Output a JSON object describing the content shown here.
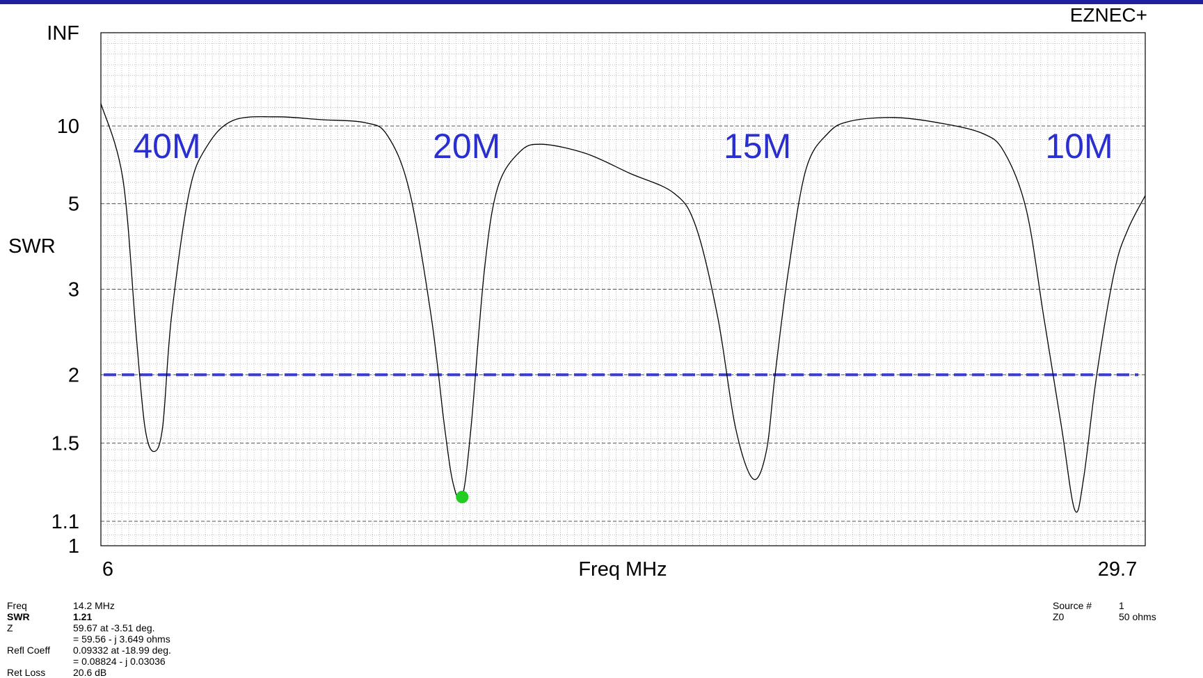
{
  "app": {
    "brand": "EZNEC+"
  },
  "colors": {
    "frame_bar": "#1f1f9f",
    "band_label": "#2a2fd0",
    "swr_line": "#3a3ad6",
    "curve": "#000000",
    "marker": "#22cc22",
    "grid": "#9a9a9a"
  },
  "chart_data": {
    "type": "line",
    "title": "",
    "xlabel": "Freq MHz",
    "ylabel": "SWR",
    "xlim": [
      6,
      29.7
    ],
    "x_tick_labels": [
      "6",
      "29.7"
    ],
    "y_scale": "reflection (|Γ| = (SWR-1)/(SWR+1))",
    "y_tick_labels": [
      "INF",
      "10",
      "5",
      "3",
      "2",
      "1.5",
      "1.1",
      "1"
    ],
    "y_tick_values": [
      null,
      10,
      5,
      3,
      2,
      1.5,
      1.1,
      1
    ],
    "grid": true,
    "reference_line": {
      "y": 2,
      "style": "dashed"
    },
    "band_labels": [
      {
        "text": "40M",
        "x": 7.5
      },
      {
        "text": "20M",
        "x": 14.3
      },
      {
        "text": "15M",
        "x": 20.9
      },
      {
        "text": "10M",
        "x": 28.2
      }
    ],
    "series": [
      {
        "x": [
          6.0,
          6.5,
          6.8,
          7.0,
          7.2,
          7.4,
          7.6,
          8.0,
          8.4,
          9.0,
          10.0,
          11.0,
          12.0,
          12.5,
          13.0,
          13.5,
          13.8,
          14.0,
          14.2,
          14.4,
          14.7,
          15.0,
          15.5,
          16.0,
          17.0,
          18.0,
          19.0,
          19.5,
          20.0,
          20.4,
          20.8,
          21.1,
          21.3,
          21.6,
          22.0,
          22.5,
          23.0,
          24.0,
          25.0,
          26.0,
          26.5,
          27.0,
          27.4,
          27.8,
          28.1,
          28.3,
          28.6,
          29.0,
          29.3,
          29.7
        ],
        "y": [
          13.5,
          6.0,
          2.4,
          1.6,
          1.45,
          1.6,
          2.6,
          5.4,
          8.0,
          10.7,
          11.2,
          10.8,
          10.4,
          9.0,
          5.5,
          2.6,
          1.6,
          1.27,
          1.21,
          1.6,
          3.3,
          5.6,
          7.6,
          8.2,
          7.5,
          6.3,
          5.4,
          4.3,
          2.6,
          1.6,
          1.3,
          1.45,
          2.0,
          3.3,
          6.5,
          9.2,
          10.6,
          11.1,
          10.4,
          9.2,
          7.6,
          4.8,
          2.6,
          1.6,
          1.15,
          1.3,
          2.0,
          3.3,
          4.2,
          5.3
        ]
      }
    ],
    "marker": {
      "x": 14.2,
      "y": 1.21
    }
  },
  "readout": {
    "freq_label": "Freq",
    "freq_value": "14.2 MHz",
    "swr_label": "SWR",
    "swr_value": "1.21",
    "z_label": "Z",
    "z_value1": "59.67 at -3.51 deg.",
    "z_value2": "= 59.56 - j 3.649 ohms",
    "refl_label": "Refl Coeff",
    "refl_value1": "0.09332 at -18.99 deg.",
    "refl_value2": "= 0.08824 - j 0.03036",
    "retloss_label": "Ret Loss",
    "retloss_value": "20.6 dB"
  },
  "source": {
    "source_label": "Source #",
    "source_value": "1",
    "z0_label": "Z0",
    "z0_value": "50 ohms"
  }
}
